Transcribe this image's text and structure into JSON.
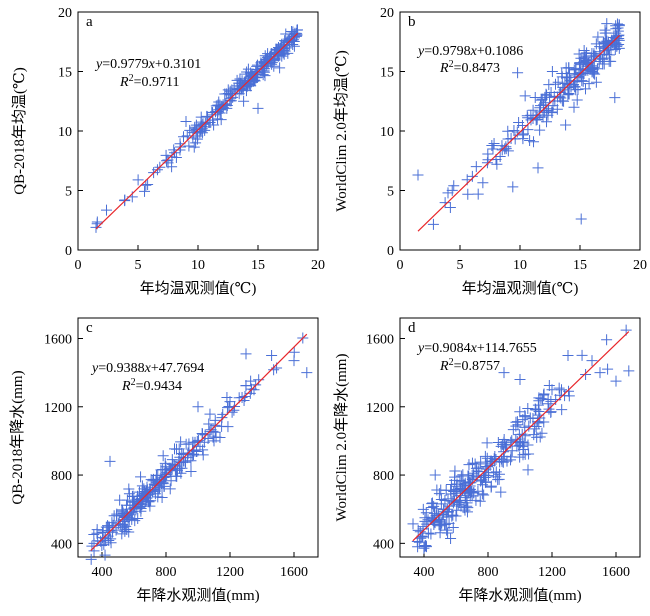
{
  "colors": {
    "marker": "#4a6fd6",
    "fit_line": "#e8262a",
    "axis": "#000000"
  },
  "chart_data": [
    {
      "type": "scatter",
      "panel_label": "a",
      "xlabel": "年均温观测值(℃)",
      "ylabel": "QB-2018年均温(℃)",
      "xlim": [
        0,
        20
      ],
      "ylim": [
        0,
        20
      ],
      "xticks": [
        0,
        5,
        10,
        15,
        20
      ],
      "yticks": [
        0,
        5,
        10,
        15,
        20
      ],
      "fit": {
        "slope": 0.9779,
        "intercept": 0.3101,
        "x_range": [
          1.5,
          18.3
        ]
      },
      "equation": {
        "y_part": "y",
        "eq_part": "=0.9779",
        "x_part": "x",
        "rest": "+0.3101"
      },
      "r2": {
        "r": "R",
        "sup": "2",
        "value": "=0.9711"
      },
      "marker": "plus",
      "seed": 11,
      "n": 240,
      "noise": 0.4,
      "x_dist": [
        [
          1.5,
          1
        ],
        [
          3,
          1
        ],
        [
          5,
          2
        ],
        [
          6.5,
          4
        ],
        [
          8,
          8
        ],
        [
          9.5,
          14
        ],
        [
          11,
          20
        ],
        [
          12.5,
          26
        ],
        [
          14,
          30
        ],
        [
          15.5,
          34
        ],
        [
          16.5,
          30
        ],
        [
          17.5,
          26
        ],
        [
          18.3,
          14
        ]
      ],
      "points": [
        [
          1.5,
          1.9
        ],
        [
          3.9,
          4.2
        ],
        [
          5.8,
          5.5
        ],
        [
          6.3,
          6.5
        ],
        [
          7.8,
          7.0
        ],
        [
          8.5,
          8.4
        ],
        [
          9.0,
          10.8
        ],
        [
          9.8,
          9.0
        ],
        [
          11.3,
          10.5
        ],
        [
          12.4,
          11.9
        ],
        [
          13.8,
          12.5
        ],
        [
          14.2,
          15.2
        ],
        [
          15.0,
          11.9
        ],
        [
          15.8,
          16.5
        ],
        [
          16.8,
          15.3
        ],
        [
          17.8,
          17.6
        ],
        [
          18.2,
          18.2
        ]
      ]
    },
    {
      "type": "scatter",
      "panel_label": "b",
      "xlabel": "年均温观测值(℃)",
      "ylabel": "WorldClim 2.0年均温(℃)",
      "xlim": [
        0,
        20
      ],
      "ylim": [
        0,
        20
      ],
      "xticks": [
        0,
        5,
        10,
        15,
        20
      ],
      "yticks": [
        0,
        5,
        10,
        15,
        20
      ],
      "fit": {
        "slope": 0.9798,
        "intercept": 0.1086,
        "x_range": [
          1.5,
          18.3
        ]
      },
      "equation": {
        "y_part": "y",
        "eq_part": "=0.9798",
        "x_part": "x",
        "rest": "+0.1086"
      },
      "r2": {
        "r": "R",
        "sup": "2",
        "value": "=0.8473"
      },
      "marker": "plus",
      "seed": 23,
      "n": 230,
      "noise": 0.8,
      "x_dist": [
        [
          1.5,
          1
        ],
        [
          3,
          1
        ],
        [
          5,
          2
        ],
        [
          6.5,
          4
        ],
        [
          8,
          8
        ],
        [
          9.5,
          14
        ],
        [
          11,
          20
        ],
        [
          12.5,
          26
        ],
        [
          14,
          30
        ],
        [
          15.5,
          34
        ],
        [
          16.5,
          30
        ],
        [
          17.5,
          26
        ],
        [
          18.3,
          14
        ]
      ],
      "points": [
        [
          1.5,
          6.3
        ],
        [
          4.0,
          4.8
        ],
        [
          5.6,
          5.9
        ],
        [
          8.0,
          7.6
        ],
        [
          9.4,
          5.3
        ],
        [
          9.8,
          14.9
        ],
        [
          10.8,
          9.2
        ],
        [
          11.5,
          6.9
        ],
        [
          12.4,
          13.9
        ],
        [
          12.7,
          15.0
        ],
        [
          13.8,
          10.5
        ],
        [
          14.5,
          12.0
        ],
        [
          15.1,
          2.6
        ],
        [
          15.5,
          16.3
        ],
        [
          17.9,
          12.8
        ],
        [
          18.0,
          17.3
        ],
        [
          18.2,
          18.0
        ]
      ]
    },
    {
      "type": "scatter",
      "panel_label": "c",
      "xlabel": "年降水观测值(mm)",
      "ylabel": "QB-2018年降水(mm)",
      "xlim": [
        250,
        1750
      ],
      "ylim": [
        320,
        1720
      ],
      "xticks": [
        400,
        800,
        1200,
        1600
      ],
      "yticks": [
        400,
        800,
        1200,
        1600
      ],
      "fit": {
        "slope": 0.9388,
        "intercept": 47.7694,
        "x_range": [
          330,
          1680
        ]
      },
      "equation": {
        "y_part": "y",
        "eq_part": "=0.9388",
        "x_part": "x",
        "rest": "+47.7694"
      },
      "r2": {
        "r": "R",
        "sup": "2",
        "value": "=0.9434"
      },
      "marker": "plus",
      "seed": 37,
      "n": 260,
      "noise": 45,
      "x_dist": [
        [
          330,
          4
        ],
        [
          450,
          20
        ],
        [
          550,
          30
        ],
        [
          650,
          32
        ],
        [
          750,
          26
        ],
        [
          850,
          22
        ],
        [
          950,
          18
        ],
        [
          1050,
          14
        ],
        [
          1150,
          10
        ],
        [
          1250,
          6
        ],
        [
          1400,
          3
        ],
        [
          1550,
          1
        ],
        [
          1680,
          1
        ]
      ],
      "points": [
        [
          350,
          400
        ],
        [
          450,
          880
        ],
        [
          560,
          560
        ],
        [
          700,
          700
        ],
        [
          800,
          830
        ],
        [
          900,
          840
        ],
        [
          1000,
          1200
        ],
        [
          1100,
          1000
        ],
        [
          1200,
          1230
        ],
        [
          1300,
          1510
        ],
        [
          1350,
          1300
        ],
        [
          1460,
          1500
        ],
        [
          1600,
          1470
        ],
        [
          1680,
          1400
        ]
      ]
    },
    {
      "type": "scatter",
      "panel_label": "d",
      "xlabel": "年降水观测值(mm)",
      "ylabel": "WorldClim 2.0年降水(mm)",
      "xlim": [
        250,
        1750
      ],
      "ylim": [
        320,
        1720
      ],
      "xticks": [
        400,
        800,
        1200,
        1600
      ],
      "yticks": [
        400,
        800,
        1200,
        1600
      ],
      "fit": {
        "slope": 0.9084,
        "intercept": 114.7655,
        "x_range": [
          330,
          1680
        ]
      },
      "equation": {
        "y_part": "y",
        "eq_part": "=0.9084",
        "x_part": "x",
        "rest": "+114.7655"
      },
      "r2": {
        "r": "R",
        "sup": "2",
        "value": "=0.8757"
      },
      "marker": "plus",
      "seed": 53,
      "n": 280,
      "noise": 70,
      "x_dist": [
        [
          330,
          4
        ],
        [
          450,
          20
        ],
        [
          550,
          30
        ],
        [
          650,
          32
        ],
        [
          750,
          26
        ],
        [
          850,
          22
        ],
        [
          950,
          18
        ],
        [
          1050,
          14
        ],
        [
          1150,
          10
        ],
        [
          1250,
          6
        ],
        [
          1400,
          3
        ],
        [
          1550,
          1
        ],
        [
          1680,
          1
        ]
      ],
      "points": [
        [
          360,
          380
        ],
        [
          380,
          430
        ],
        [
          470,
          800
        ],
        [
          600,
          560
        ],
        [
          880,
          700
        ],
        [
          900,
          1400
        ],
        [
          1000,
          1360
        ],
        [
          1050,
          830
        ],
        [
          1200,
          1300
        ],
        [
          1300,
          1500
        ],
        [
          1450,
          1470
        ],
        [
          1500,
          1400
        ],
        [
          1600,
          1350
        ],
        [
          1680,
          1410
        ]
      ]
    }
  ]
}
